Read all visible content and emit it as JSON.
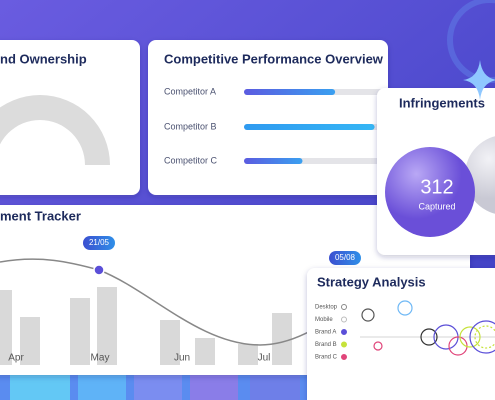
{
  "brand_ownership": {
    "title": "nd Ownership"
  },
  "competitive": {
    "title": "Competitive Performance Overview",
    "rows": [
      {
        "label": "Competitor A",
        "value": 67
      },
      {
        "label": "Competitor B",
        "value": 96
      },
      {
        "label": "Competitor C",
        "value": 43
      }
    ]
  },
  "infringements": {
    "title": "Infringements",
    "value": "312",
    "caption": "Captured"
  },
  "tracker": {
    "title": "ment Tracker",
    "months": [
      "Apr",
      "May",
      "Jun",
      "Jul"
    ],
    "tooltips": [
      "21/05",
      "05/08"
    ],
    "bars": [
      75,
      48,
      67,
      78,
      45,
      27,
      21,
      52
    ]
  },
  "strategy": {
    "title": "Strategy Analysis",
    "legend": [
      "Desktop",
      "Mobile",
      "Brand A",
      "Brand B",
      "Brand C"
    ]
  }
}
